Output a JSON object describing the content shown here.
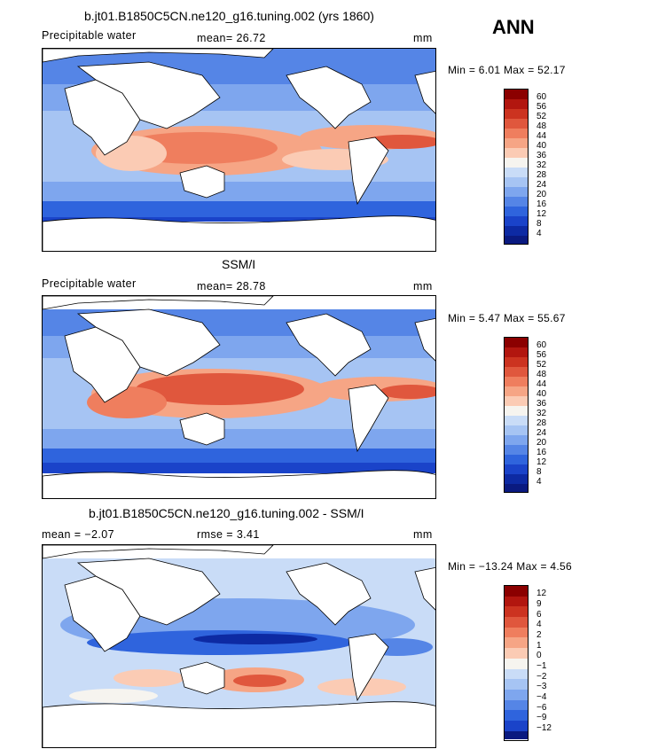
{
  "season": "ANN",
  "panels": [
    {
      "title": "b.jt01.B1850C5CN.ne120_g16.tuning.002 (yrs 1860)",
      "left_label": "Precipitable water",
      "mid_label": "mean=   26.72",
      "units": "mm",
      "minmax": "Min =    6.01  Max =   52.17",
      "colorbar": {
        "levels": [
          "60",
          "56",
          "52",
          "48",
          "44",
          "40",
          "36",
          "32",
          "28",
          "24",
          "20",
          "16",
          "12",
          "8",
          "4"
        ],
        "colors": [
          "#8b0000",
          "#b2160f",
          "#cc3320",
          "#e0573d",
          "#ef7e5e",
          "#f6a585",
          "#fbcbb4",
          "#f6f4ef",
          "#c9dcf7",
          "#a6c4f3",
          "#7ea6ee",
          "#5585e6",
          "#2f64dd",
          "#1a43c9",
          "#0d2aa3",
          "#0a1a80"
        ]
      }
    },
    {
      "title": "SSM/I",
      "left_label": "Precipitable water",
      "mid_label": "mean=   28.78",
      "units": "mm",
      "minmax": "Min =    5.47  Max =   55.67",
      "colorbar": {
        "levels": [
          "60",
          "56",
          "52",
          "48",
          "44",
          "40",
          "36",
          "32",
          "28",
          "24",
          "20",
          "16",
          "12",
          "8",
          "4"
        ],
        "colors": [
          "#8b0000",
          "#b2160f",
          "#cc3320",
          "#e0573d",
          "#ef7e5e",
          "#f6a585",
          "#fbcbb4",
          "#f6f4ef",
          "#c9dcf7",
          "#a6c4f3",
          "#7ea6ee",
          "#5585e6",
          "#2f64dd",
          "#1a43c9",
          "#0d2aa3",
          "#0a1a80"
        ]
      }
    },
    {
      "title": "b.jt01.B1850C5CN.ne120_g16.tuning.002 - SSM/I",
      "left_label": "mean =   −2.07",
      "mid_label": "rmse =    3.41",
      "units": "mm",
      "minmax": "Min = −13.24  Max =    4.56",
      "colorbar": {
        "levels": [
          "12",
          "9",
          "6",
          "4",
          "2",
          "1",
          "0",
          "−1",
          "−2",
          "−3",
          "−4",
          "−6",
          "−9",
          "−12"
        ],
        "colors": [
          "#8b0000",
          "#b2160f",
          "#cc3320",
          "#e0573d",
          "#ef7e5e",
          "#f6a585",
          "#fbcbb4",
          "#f6f4ef",
          "#c9dcf7",
          "#a6c4f3",
          "#7ea6ee",
          "#5585e6",
          "#2f64dd",
          "#1a43c9",
          "#0a1a80"
        ]
      }
    }
  ]
}
